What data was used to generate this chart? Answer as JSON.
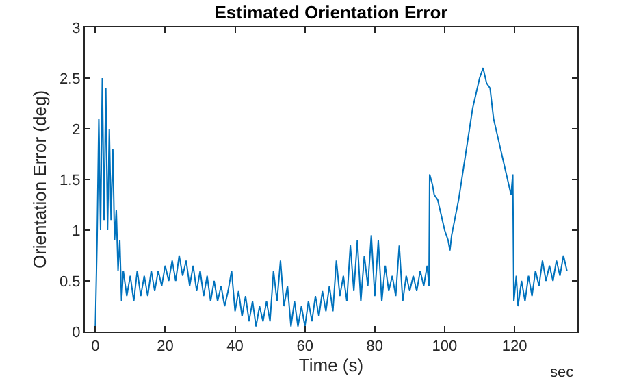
{
  "chart_data": {
    "type": "line",
    "title": "Estimated Orientation Error",
    "xlabel": "Time (s)",
    "ylabel": "Orientation Error (deg)",
    "annotations": [
      "sec"
    ],
    "xlim": [
      -3,
      138
    ],
    "xticks": [
      0,
      20,
      40,
      60,
      80,
      100,
      120
    ],
    "ylim": [
      0,
      3
    ],
    "yticks": [
      0,
      0.5,
      1,
      1.5,
      2,
      2.5,
      3
    ],
    "grid": false,
    "series": [
      {
        "color": "#0072bd",
        "x": [
          0,
          0.5,
          1,
          1.5,
          2,
          2.5,
          3,
          3.5,
          4,
          4.5,
          5,
          5.5,
          6,
          6.5,
          7,
          7.5,
          8,
          9,
          10,
          11,
          12,
          13,
          14,
          15,
          16,
          17,
          18,
          19,
          20,
          21,
          22,
          23,
          24,
          25,
          26,
          27,
          28,
          29,
          30,
          31,
          32,
          33,
          34,
          35,
          36,
          37,
          38,
          39,
          40,
          41,
          42,
          43,
          44,
          45,
          46,
          47,
          48,
          49,
          50,
          51,
          52,
          53,
          54,
          55,
          56,
          57,
          58,
          59,
          60,
          61,
          62,
          63,
          64,
          65,
          66,
          67,
          68,
          69,
          70,
          71,
          72,
          73,
          74,
          75,
          76,
          77,
          78,
          79,
          80,
          81,
          82,
          83,
          84,
          85,
          86,
          87,
          88,
          89,
          90,
          91,
          92,
          93,
          94,
          95,
          95.5,
          95.7,
          96.5,
          97,
          98,
          99,
          100,
          101,
          101.5,
          102,
          104,
          106,
          108,
          110,
          111,
          112,
          113,
          114,
          116,
          118,
          119,
          119.5,
          119.8,
          120.5,
          121,
          122,
          123,
          124,
          125,
          126,
          127,
          128,
          129,
          130,
          131,
          132,
          133,
          134,
          135
        ],
        "values": [
          0.05,
          0.9,
          2.1,
          1.0,
          2.5,
          1.1,
          2.4,
          1.0,
          2.0,
          1.1,
          1.8,
          0.9,
          1.2,
          0.6,
          0.9,
          0.3,
          0.6,
          0.35,
          0.55,
          0.3,
          0.6,
          0.35,
          0.55,
          0.35,
          0.6,
          0.4,
          0.6,
          0.45,
          0.65,
          0.5,
          0.7,
          0.5,
          0.75,
          0.55,
          0.7,
          0.45,
          0.65,
          0.4,
          0.6,
          0.35,
          0.55,
          0.3,
          0.5,
          0.3,
          0.45,
          0.25,
          0.4,
          0.6,
          0.2,
          0.4,
          0.15,
          0.35,
          0.1,
          0.3,
          0.05,
          0.25,
          0.1,
          0.3,
          0.1,
          0.6,
          0.3,
          0.7,
          0.25,
          0.45,
          0.05,
          0.3,
          0.05,
          0.25,
          0.05,
          0.3,
          0.1,
          0.35,
          0.15,
          0.4,
          0.2,
          0.45,
          0.2,
          0.7,
          0.35,
          0.55,
          0.3,
          0.85,
          0.4,
          0.9,
          0.3,
          0.75,
          0.45,
          0.95,
          0.35,
          0.9,
          0.3,
          0.65,
          0.4,
          0.55,
          0.35,
          0.85,
          0.3,
          0.55,
          0.4,
          0.55,
          0.4,
          0.6,
          0.45,
          0.65,
          0.45,
          1.55,
          1.45,
          1.35,
          1.3,
          1.15,
          1.0,
          0.9,
          0.8,
          0.95,
          1.3,
          1.75,
          2.2,
          2.5,
          2.6,
          2.45,
          2.4,
          2.1,
          1.8,
          1.5,
          1.35,
          1.55,
          0.3,
          0.55,
          0.25,
          0.5,
          0.3,
          0.55,
          0.35,
          0.6,
          0.45,
          0.7,
          0.5,
          0.65,
          0.5,
          0.7,
          0.55,
          0.75,
          0.6
        ]
      }
    ]
  }
}
